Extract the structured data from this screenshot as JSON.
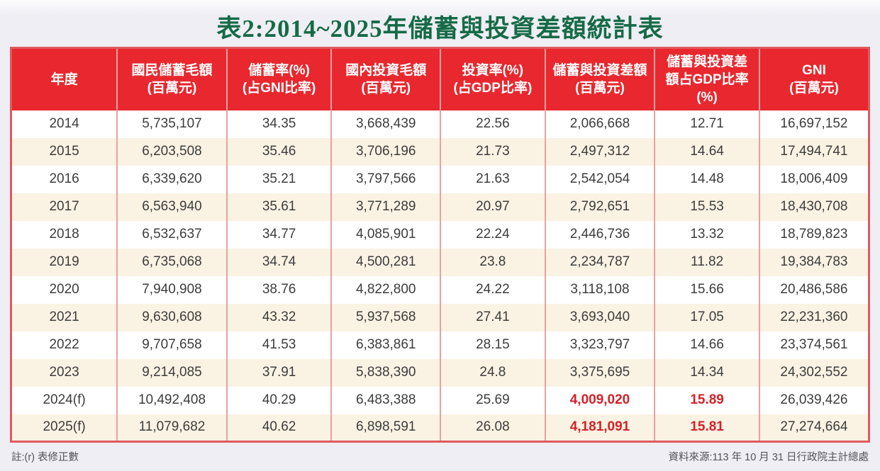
{
  "title": "表2:2014~2025年儲蓄與投資差額統計表",
  "colors": {
    "page_bg": "#efeef4",
    "header_red": "#e8282e",
    "emphasis_red": "#d42127",
    "title_green": "#156b47",
    "row_stripe_cream": "#faf2e3",
    "cell_separator_pink": "#eb9fa2",
    "outer_border_red": "#e05a5f",
    "body_text": "#3d3d3d"
  },
  "table": {
    "columns": [
      "年度",
      "國民儲蓄毛額\n(百萬元)",
      "儲蓄率(%)\n(占GNI比率)",
      "國內投資毛額\n(百萬元)",
      "投資率(%)\n(占GDP比率)",
      "儲蓄與投資差額\n(百萬元)",
      "儲蓄與投資差\n額占GDP比率\n(%)",
      "GNI\n(百萬元)"
    ],
    "rows": [
      {
        "cells": [
          "2014",
          "5,735,107",
          "34.35",
          "3,668,439",
          "22.56",
          "2,066,668",
          "12.71",
          "16,697,152"
        ],
        "red_cols": []
      },
      {
        "cells": [
          "2015",
          "6,203,508",
          "35.46",
          "3,706,196",
          "21.73",
          "2,497,312",
          "14.64",
          "17,494,741"
        ],
        "red_cols": []
      },
      {
        "cells": [
          "2016",
          "6,339,620",
          "35.21",
          "3,797,566",
          "21.63",
          "2,542,054",
          "14.48",
          "18,006,409"
        ],
        "red_cols": []
      },
      {
        "cells": [
          "2017",
          "6,563,940",
          "35.61",
          "3,771,289",
          "20.97",
          "2,792,651",
          "15.53",
          "18,430,708"
        ],
        "red_cols": []
      },
      {
        "cells": [
          "2018",
          "6,532,637",
          "34.77",
          "4,085,901",
          "22.24",
          "2,446,736",
          "13.32",
          "18,789,823"
        ],
        "red_cols": []
      },
      {
        "cells": [
          "2019",
          "6,735,068",
          "34.74",
          "4,500,281",
          "23.8",
          "2,234,787",
          "11.82",
          "19,384,783"
        ],
        "red_cols": []
      },
      {
        "cells": [
          "2020",
          "7,940,908",
          "38.76",
          "4,822,800",
          "24.22",
          "3,118,108",
          "15.66",
          "20,486,586"
        ],
        "red_cols": []
      },
      {
        "cells": [
          "2021",
          "9,630,608",
          "43.32",
          "5,937,568",
          "27.41",
          "3,693,040",
          "17.05",
          "22,231,360"
        ],
        "red_cols": []
      },
      {
        "cells": [
          "2022",
          "9,707,658",
          "41.53",
          "6,383,861",
          "28.15",
          "3,323,797",
          "14.66",
          "23,374,561"
        ],
        "red_cols": []
      },
      {
        "cells": [
          "2023",
          "9,214,085",
          "37.91",
          "5,838,390",
          "24.8",
          "3,375,695",
          "14.34",
          "24,302,552"
        ],
        "red_cols": []
      },
      {
        "cells": [
          "2024(f)",
          "10,492,408",
          "40.29",
          "6,483,388",
          "25.69",
          "4,009,020",
          "15.89",
          "26,039,426"
        ],
        "red_cols": [
          5,
          6
        ]
      },
      {
        "cells": [
          "2025(f)",
          "11,079,682",
          "40.62",
          "6,898,591",
          "26.08",
          "4,181,091",
          "15.81",
          "27,274,664"
        ],
        "red_cols": [
          5,
          6
        ]
      }
    ]
  },
  "footer": {
    "note": "註:(r) 表修正數",
    "source": "資料來源:113 年 10 月 31 日行政院主計總處"
  }
}
